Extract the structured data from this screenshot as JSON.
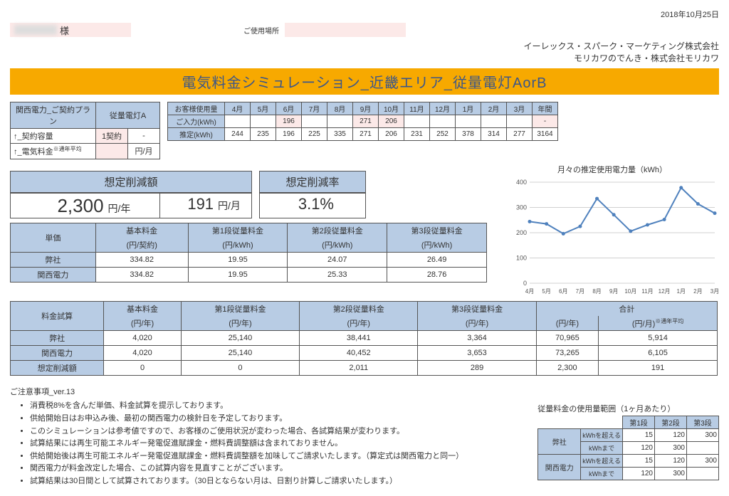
{
  "date": "2018年10月25日",
  "customer": {
    "suffix": "様",
    "place_label": "ご使用場所"
  },
  "company": {
    "line1": "イーレックス・スパーク・マーケティング株式会社",
    "line2": "モリカワのでんき・株式会社モリカワ"
  },
  "title": "電気料金シミュレーション_近畿エリア_従量電灯AorB",
  "contract": {
    "header": "関西電力_ご契約プラン",
    "plan_col": "従量電灯A",
    "cap_label": "↑_契約容量",
    "cap_val": "1契約",
    "cap_dash": "-",
    "fee_label": "↑_電気料金",
    "fee_note": "※通年平均",
    "fee_unit": "円/月"
  },
  "usage": {
    "col0": "お客様使用量",
    "months": [
      "4月",
      "5月",
      "6月",
      "7月",
      "8月",
      "9月",
      "10月",
      "11月",
      "12月",
      "1月",
      "2月",
      "3月",
      "年間"
    ],
    "input_label": "ご入力(kWh)",
    "input_vals": [
      "",
      "",
      "196",
      "",
      "",
      "271",
      "206",
      "",
      "",
      "",
      "",
      "",
      "-"
    ],
    "input_peach_idx": [
      2,
      5,
      6,
      12
    ],
    "est_label": "推定(kWh)",
    "est_vals": [
      "244",
      "235",
      "196",
      "225",
      "335",
      "271",
      "206",
      "231",
      "252",
      "378",
      "314",
      "277",
      "3164"
    ]
  },
  "savings": {
    "amount_hdr": "想定削減額",
    "amount_year": "2,300",
    "amount_year_unit": "円/年",
    "amount_month": "191",
    "amount_month_unit": "円/月",
    "rate_hdr": "想定削減率",
    "rate_val": "3.1%"
  },
  "unit_price": {
    "headers": [
      "単価",
      "基本料金",
      "第1段従量料金",
      "第2段従量料金",
      "第3段従量料金"
    ],
    "sub": [
      "",
      "(円/契約)",
      "(円/kWh)",
      "(円/kWh)",
      "(円/kWh)"
    ],
    "us_label": "弊社",
    "us": [
      "334.82",
      "19.95",
      "24.07",
      "26.49"
    ],
    "kd_label": "関西電力",
    "kd": [
      "334.82",
      "19.95",
      "25.33",
      "28.76"
    ]
  },
  "chart": {
    "title": "月々の推定使用電力量（kWh）",
    "x_labels": [
      "4月",
      "5月",
      "6月",
      "7月",
      "8月",
      "9月",
      "10月",
      "11月",
      "12月",
      "1月",
      "2月",
      "3月"
    ],
    "y_ticks": [
      0,
      100,
      200,
      300,
      400
    ],
    "values": [
      244,
      235,
      196,
      225,
      335,
      271,
      206,
      231,
      252,
      378,
      314,
      277
    ],
    "line_color": "#4f81bd",
    "grid_color": "#d0d0d0",
    "axis_color": "#888",
    "ymax": 400
  },
  "estimate": {
    "headers": [
      "料金試算",
      "基本料金",
      "第1段従量料金",
      "第2段従量料金",
      "第3段従量料金",
      "合計",
      ""
    ],
    "sub": [
      "",
      "(円/年)",
      "(円/年)",
      "(円/年)",
      "(円/年)",
      "(円/年)",
      "(円/月)"
    ],
    "sub6_note": "※通年平均",
    "us_label": "弊社",
    "us": [
      "4,020",
      "25,140",
      "38,441",
      "3,364",
      "70,965",
      "5,914"
    ],
    "kd_label": "関西電力",
    "kd": [
      "4,020",
      "25,140",
      "40,452",
      "3,653",
      "73,265",
      "6,105"
    ],
    "sv_label": "想定削減額",
    "sv": [
      "0",
      "0",
      "2,011",
      "289",
      "2,300",
      "191"
    ]
  },
  "notes": {
    "title": "ご注意事項_ver.13",
    "items": [
      "消費税8%を含んだ単価、料金試算を提示しております。",
      "供給開始日はお申込み後、最初の関西電力の検針日を予定しております。",
      "このシミュレーションは参考値ですので、お客様のご使用状況が変わった場合、各試算結果が変わります。",
      "試算結果には再生可能エネルギー発電促進賦課金・燃料費調整額は含まれておりません。",
      "供給開始後は再生可能エネルギー発電促進賦課金・燃料費調整額を加味してご請求いたします。（算定式は関西電力と同一）",
      "関西電力が料金改定した場合、この試算内容を見直すことがございます。",
      "試算結果は30日間として試算されております。（30日とならない月は、日割り計算しご請求いたします。）"
    ]
  },
  "range": {
    "caption": "従量料金の使用量範囲（1ヶ月あたり）",
    "cols": [
      "第1段",
      "第2段",
      "第3段"
    ],
    "us_label": "弊社",
    "kd_label": "関西電力",
    "over_label": "kWhを超える",
    "upto_label": "kWhまで",
    "us_over": [
      "15",
      "120",
      "300"
    ],
    "us_upto": [
      "120",
      "300",
      ""
    ],
    "kd_over": [
      "15",
      "120",
      "300"
    ],
    "kd_upto": [
      "120",
      "300",
      ""
    ]
  }
}
